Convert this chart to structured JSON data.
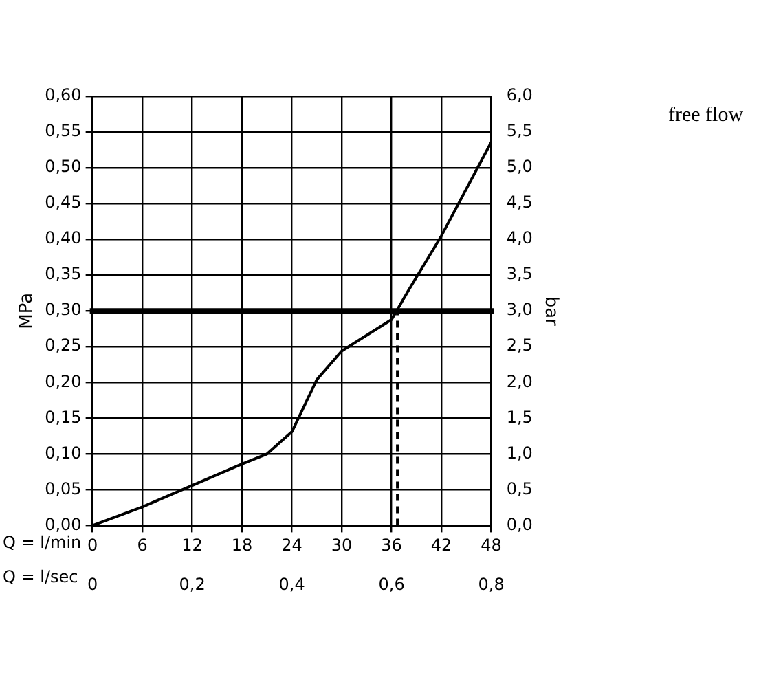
{
  "chart_data": {
    "type": "line",
    "xlabel": "Q = l/min",
    "x2label": "Q = l/sec",
    "ylabel": "MPa",
    "y2label": "bar",
    "annotations": [
      "free flow"
    ],
    "xlim": [
      0,
      48
    ],
    "xticks": [
      0,
      6,
      12,
      18,
      24,
      30,
      36,
      42,
      48
    ],
    "x2lim": [
      0,
      0.8
    ],
    "x2ticks": [
      0,
      {
        "value": 0.2,
        "label": "0,2"
      },
      {
        "value": 0.4,
        "label": "0,4"
      },
      {
        "value": 0.6,
        "label": "0,6"
      },
      {
        "value": 0.8,
        "label": "0,8"
      }
    ],
    "ylim": [
      0,
      0.6
    ],
    "yticks": [
      {
        "value": 0,
        "label": "0,00"
      },
      {
        "value": 0.05,
        "label": "0,05"
      },
      {
        "value": 0.1,
        "label": "0,10"
      },
      {
        "value": 0.15,
        "label": "0,15"
      },
      {
        "value": 0.2,
        "label": "0,20"
      },
      {
        "value": 0.25,
        "label": "0,25"
      },
      {
        "value": 0.3,
        "label": "0,30"
      },
      {
        "value": 0.35,
        "label": "0,35"
      },
      {
        "value": 0.4,
        "label": "0,40"
      },
      {
        "value": 0.45,
        "label": "0,45"
      },
      {
        "value": 0.5,
        "label": "0,50"
      },
      {
        "value": 0.55,
        "label": "0,55"
      },
      {
        "value": 0.6,
        "label": "0,60"
      }
    ],
    "y2lim": [
      0,
      6
    ],
    "y2ticks": [
      {
        "value": 0,
        "label": "0,0"
      },
      {
        "value": 0.5,
        "label": "0,5"
      },
      {
        "value": 1,
        "label": "1,0"
      },
      {
        "value": 1.5,
        "label": "1,5"
      },
      {
        "value": 2,
        "label": "2,0"
      },
      {
        "value": 2.5,
        "label": "2,5"
      },
      {
        "value": 3,
        "label": "3,0"
      },
      {
        "value": 3.5,
        "label": "3,5"
      },
      {
        "value": 4,
        "label": "4,0"
      },
      {
        "value": 4.5,
        "label": "4,5"
      },
      {
        "value": 5,
        "label": "5,0"
      },
      {
        "value": 5.5,
        "label": "5,5"
      },
      {
        "value": 6,
        "label": "6,0"
      }
    ],
    "grid": true,
    "marker": "none",
    "ref_lines": [
      {
        "axis": "y",
        "value": 0.3,
        "color": "#000000"
      }
    ],
    "series": [
      {
        "color": "#000000",
        "line_style": "solid",
        "x": [
          0,
          6,
          12,
          18,
          21,
          24,
          27,
          30,
          36,
          38,
          42,
          48
        ],
        "values": [
          0,
          0.026,
          0.056,
          0.086,
          0.1,
          0.131,
          0.204,
          0.244,
          0.288,
          0.328,
          0.405,
          0.536
        ]
      },
      {
        "color": "#000000",
        "line_style": "dashed",
        "x": [
          36.7,
          36.7
        ],
        "values": [
          0,
          0.3
        ]
      }
    ]
  }
}
